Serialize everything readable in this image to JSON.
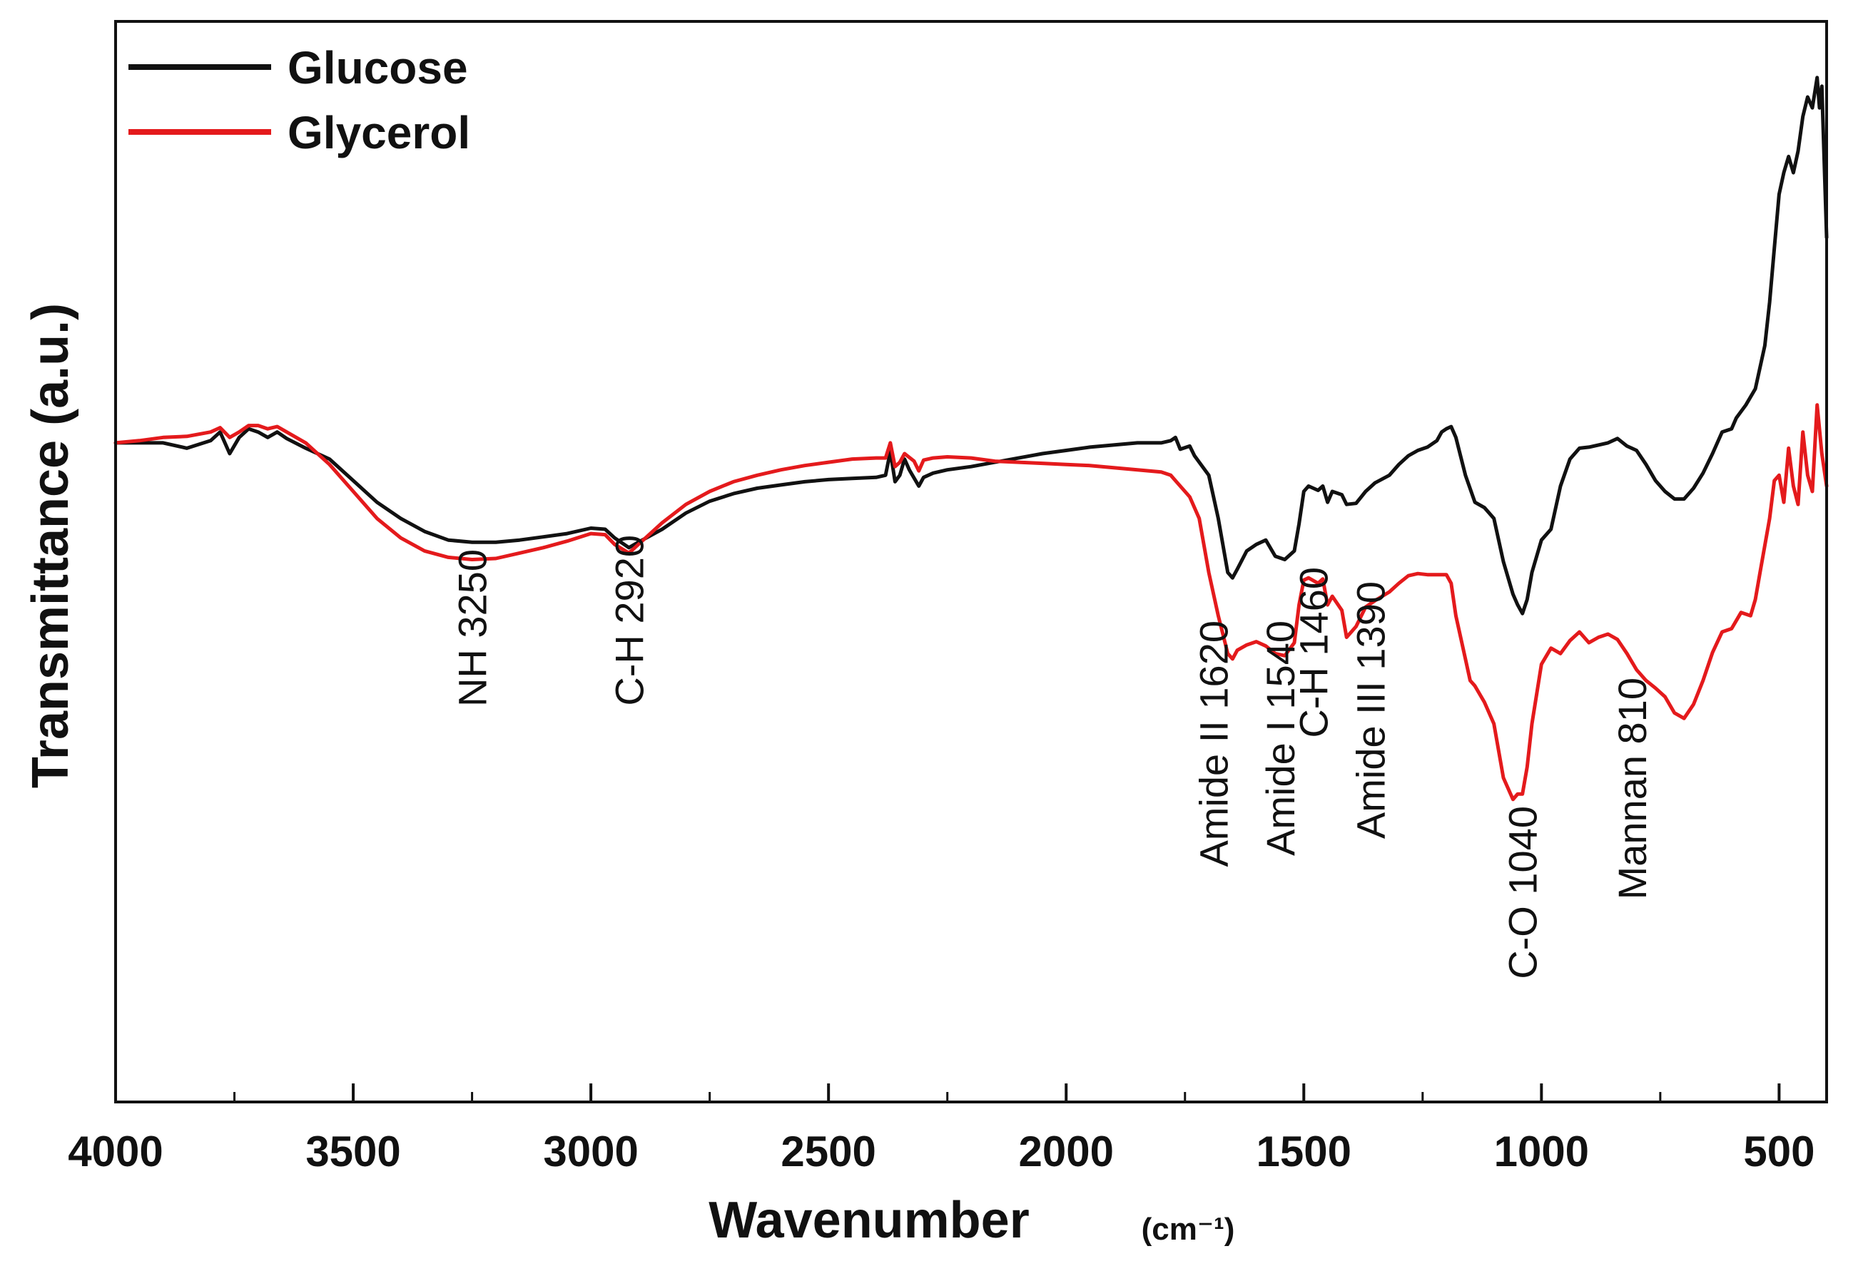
{
  "chart_data": {
    "type": "line",
    "title": "",
    "xlabel": "Wavenumber",
    "xunit": "(cm⁻¹)",
    "ylabel": "Transmittance (a.u.)",
    "xlim": [
      4000,
      400
    ],
    "ylim": [
      0,
      100
    ],
    "xticks": [
      4000,
      3500,
      3000,
      2500,
      2000,
      1500,
      1000,
      500
    ],
    "xtick_labels": [
      "4000",
      "3500",
      "3000",
      "2500",
      "2000",
      "1500",
      "1000",
      "500"
    ],
    "yticks_visible": false,
    "grid": false,
    "legend_position": "top-left",
    "series": [
      {
        "name": "Glucose",
        "color": "#111111",
        "points": [
          [
            4000,
            61
          ],
          [
            3950,
            61
          ],
          [
            3900,
            61
          ],
          [
            3850,
            60.5
          ],
          [
            3800,
            61.2
          ],
          [
            3780,
            62
          ],
          [
            3760,
            60
          ],
          [
            3740,
            61.5
          ],
          [
            3720,
            62.3
          ],
          [
            3700,
            62
          ],
          [
            3680,
            61.5
          ],
          [
            3660,
            62
          ],
          [
            3640,
            61.4
          ],
          [
            3600,
            60.5
          ],
          [
            3550,
            59.5
          ],
          [
            3500,
            57.5
          ],
          [
            3450,
            55.5
          ],
          [
            3400,
            54
          ],
          [
            3350,
            52.8
          ],
          [
            3300,
            52
          ],
          [
            3250,
            51.8
          ],
          [
            3200,
            51.8
          ],
          [
            3150,
            52
          ],
          [
            3100,
            52.3
          ],
          [
            3050,
            52.6
          ],
          [
            3000,
            53.1
          ],
          [
            2970,
            53
          ],
          [
            2950,
            52.2
          ],
          [
            2920,
            51.3
          ],
          [
            2900,
            51.8
          ],
          [
            2850,
            53
          ],
          [
            2800,
            54.5
          ],
          [
            2750,
            55.6
          ],
          [
            2700,
            56.3
          ],
          [
            2650,
            56.8
          ],
          [
            2600,
            57.1
          ],
          [
            2550,
            57.4
          ],
          [
            2500,
            57.6
          ],
          [
            2450,
            57.7
          ],
          [
            2400,
            57.8
          ],
          [
            2380,
            58
          ],
          [
            2370,
            60.2
          ],
          [
            2360,
            57.4
          ],
          [
            2350,
            58
          ],
          [
            2340,
            59.5
          ],
          [
            2330,
            58.5
          ],
          [
            2310,
            57
          ],
          [
            2300,
            57.8
          ],
          [
            2280,
            58.2
          ],
          [
            2250,
            58.5
          ],
          [
            2200,
            58.8
          ],
          [
            2150,
            59.2
          ],
          [
            2100,
            59.6
          ],
          [
            2050,
            60
          ],
          [
            2000,
            60.3
          ],
          [
            1950,
            60.6
          ],
          [
            1900,
            60.8
          ],
          [
            1850,
            61
          ],
          [
            1800,
            61
          ],
          [
            1780,
            61.2
          ],
          [
            1770,
            61.5
          ],
          [
            1760,
            60.4
          ],
          [
            1740,
            60.7
          ],
          [
            1730,
            59.8
          ],
          [
            1700,
            58
          ],
          [
            1680,
            54
          ],
          [
            1660,
            49
          ],
          [
            1650,
            48.5
          ],
          [
            1640,
            49.3
          ],
          [
            1620,
            51
          ],
          [
            1600,
            51.6
          ],
          [
            1580,
            52
          ],
          [
            1560,
            50.5
          ],
          [
            1540,
            50.2
          ],
          [
            1520,
            51
          ],
          [
            1510,
            53.5
          ],
          [
            1500,
            56.5
          ],
          [
            1490,
            57
          ],
          [
            1470,
            56.6
          ],
          [
            1460,
            57
          ],
          [
            1450,
            55.5
          ],
          [
            1440,
            56.5
          ],
          [
            1420,
            56.2
          ],
          [
            1410,
            55.3
          ],
          [
            1390,
            55.4
          ],
          [
            1370,
            56.5
          ],
          [
            1350,
            57.3
          ],
          [
            1320,
            58
          ],
          [
            1300,
            59
          ],
          [
            1280,
            59.8
          ],
          [
            1260,
            60.3
          ],
          [
            1240,
            60.6
          ],
          [
            1220,
            61.2
          ],
          [
            1210,
            62
          ],
          [
            1200,
            62.3
          ],
          [
            1190,
            62.5
          ],
          [
            1180,
            61.5
          ],
          [
            1160,
            58
          ],
          [
            1140,
            55.5
          ],
          [
            1120,
            55
          ],
          [
            1100,
            54
          ],
          [
            1080,
            50
          ],
          [
            1060,
            47
          ],
          [
            1050,
            46
          ],
          [
            1040,
            45.2
          ],
          [
            1030,
            46.5
          ],
          [
            1020,
            49
          ],
          [
            1000,
            52
          ],
          [
            980,
            53
          ],
          [
            960,
            57
          ],
          [
            940,
            59.5
          ],
          [
            920,
            60.5
          ],
          [
            900,
            60.6
          ],
          [
            880,
            60.8
          ],
          [
            860,
            61
          ],
          [
            840,
            61.4
          ],
          [
            820,
            60.7
          ],
          [
            800,
            60.3
          ],
          [
            780,
            59
          ],
          [
            760,
            57.5
          ],
          [
            740,
            56.5
          ],
          [
            720,
            55.8
          ],
          [
            700,
            55.8
          ],
          [
            680,
            56.8
          ],
          [
            660,
            58.2
          ],
          [
            640,
            60
          ],
          [
            620,
            62
          ],
          [
            600,
            62.3
          ],
          [
            590,
            63.3
          ],
          [
            570,
            64.5
          ],
          [
            550,
            66
          ],
          [
            530,
            70
          ],
          [
            520,
            74
          ],
          [
            510,
            79
          ],
          [
            500,
            84
          ],
          [
            490,
            86
          ],
          [
            480,
            87.5
          ],
          [
            470,
            86
          ],
          [
            460,
            88
          ],
          [
            450,
            91.2
          ],
          [
            440,
            93
          ],
          [
            430,
            92
          ],
          [
            420,
            94.8
          ],
          [
            415,
            92
          ],
          [
            410,
            94
          ],
          [
            400,
            80
          ]
        ]
      },
      {
        "name": "Glycerol",
        "color": "#e41a1c",
        "points": [
          [
            4000,
            61
          ],
          [
            3950,
            61.2
          ],
          [
            3900,
            61.5
          ],
          [
            3850,
            61.6
          ],
          [
            3800,
            62
          ],
          [
            3780,
            62.4
          ],
          [
            3760,
            61.5
          ],
          [
            3740,
            62
          ],
          [
            3720,
            62.6
          ],
          [
            3700,
            62.6
          ],
          [
            3680,
            62.3
          ],
          [
            3660,
            62.5
          ],
          [
            3640,
            62
          ],
          [
            3600,
            61
          ],
          [
            3550,
            59
          ],
          [
            3500,
            56.5
          ],
          [
            3450,
            54
          ],
          [
            3400,
            52.2
          ],
          [
            3350,
            51
          ],
          [
            3300,
            50.4
          ],
          [
            3250,
            50.2
          ],
          [
            3200,
            50.3
          ],
          [
            3150,
            50.8
          ],
          [
            3100,
            51.3
          ],
          [
            3050,
            51.9
          ],
          [
            3000,
            52.6
          ],
          [
            2970,
            52.5
          ],
          [
            2950,
            51.6
          ],
          [
            2920,
            50.8
          ],
          [
            2900,
            51.6
          ],
          [
            2850,
            53.6
          ],
          [
            2800,
            55.3
          ],
          [
            2750,
            56.5
          ],
          [
            2700,
            57.4
          ],
          [
            2650,
            58
          ],
          [
            2600,
            58.5
          ],
          [
            2550,
            58.9
          ],
          [
            2500,
            59.2
          ],
          [
            2450,
            59.5
          ],
          [
            2400,
            59.6
          ],
          [
            2380,
            59.6
          ],
          [
            2370,
            61
          ],
          [
            2360,
            58.8
          ],
          [
            2350,
            59.2
          ],
          [
            2340,
            60
          ],
          [
            2320,
            59.3
          ],
          [
            2310,
            58.4
          ],
          [
            2300,
            59.4
          ],
          [
            2280,
            59.6
          ],
          [
            2250,
            59.7
          ],
          [
            2200,
            59.6
          ],
          [
            2150,
            59.3
          ],
          [
            2100,
            59.2
          ],
          [
            2050,
            59.1
          ],
          [
            2000,
            59
          ],
          [
            1950,
            58.9
          ],
          [
            1900,
            58.7
          ],
          [
            1850,
            58.5
          ],
          [
            1800,
            58.3
          ],
          [
            1780,
            58
          ],
          [
            1770,
            57.5
          ],
          [
            1760,
            57
          ],
          [
            1740,
            56
          ],
          [
            1720,
            54
          ],
          [
            1700,
            49
          ],
          [
            1680,
            45
          ],
          [
            1660,
            41.5
          ],
          [
            1650,
            41
          ],
          [
            1640,
            41.8
          ],
          [
            1620,
            42.3
          ],
          [
            1600,
            42.6
          ],
          [
            1580,
            42.2
          ],
          [
            1560,
            41.5
          ],
          [
            1540,
            41.3
          ],
          [
            1520,
            42.5
          ],
          [
            1510,
            46
          ],
          [
            1500,
            48.3
          ],
          [
            1490,
            48.5
          ],
          [
            1470,
            48
          ],
          [
            1460,
            48.4
          ],
          [
            1450,
            46
          ],
          [
            1440,
            46.8
          ],
          [
            1420,
            45.5
          ],
          [
            1410,
            43
          ],
          [
            1390,
            44
          ],
          [
            1370,
            45.8
          ],
          [
            1350,
            46.4
          ],
          [
            1320,
            47.2
          ],
          [
            1300,
            48
          ],
          [
            1280,
            48.7
          ],
          [
            1260,
            48.9
          ],
          [
            1240,
            48.8
          ],
          [
            1220,
            48.8
          ],
          [
            1200,
            48.8
          ],
          [
            1190,
            48
          ],
          [
            1180,
            45
          ],
          [
            1160,
            41
          ],
          [
            1150,
            39
          ],
          [
            1140,
            38.5
          ],
          [
            1120,
            37
          ],
          [
            1100,
            35
          ],
          [
            1080,
            30
          ],
          [
            1060,
            28
          ],
          [
            1050,
            28.5
          ],
          [
            1040,
            28.5
          ],
          [
            1030,
            31
          ],
          [
            1020,
            35
          ],
          [
            1000,
            40.5
          ],
          [
            980,
            42
          ],
          [
            960,
            41.5
          ],
          [
            940,
            42.7
          ],
          [
            920,
            43.5
          ],
          [
            900,
            42.5
          ],
          [
            880,
            43
          ],
          [
            860,
            43.3
          ],
          [
            840,
            42.8
          ],
          [
            820,
            41.5
          ],
          [
            800,
            40
          ],
          [
            780,
            39
          ],
          [
            760,
            38.3
          ],
          [
            740,
            37.5
          ],
          [
            720,
            36
          ],
          [
            700,
            35.5
          ],
          [
            680,
            36.8
          ],
          [
            660,
            39
          ],
          [
            640,
            41.6
          ],
          [
            620,
            43.5
          ],
          [
            600,
            43.8
          ],
          [
            580,
            45.3
          ],
          [
            560,
            45
          ],
          [
            550,
            46.5
          ],
          [
            540,
            49
          ],
          [
            520,
            54
          ],
          [
            510,
            57.5
          ],
          [
            500,
            58
          ],
          [
            490,
            55.5
          ],
          [
            480,
            60.5
          ],
          [
            470,
            57
          ],
          [
            460,
            55.3
          ],
          [
            450,
            62
          ],
          [
            440,
            58
          ],
          [
            430,
            56.5
          ],
          [
            420,
            64.5
          ],
          [
            410,
            60
          ],
          [
            400,
            57
          ]
        ]
      }
    ],
    "annotations": [
      {
        "label": "NH  3250",
        "x": 3250
      },
      {
        "label": "C-H  2920",
        "x": 2920
      },
      {
        "label": "Amide II  1620",
        "x": 1690
      },
      {
        "label": "Amide I 1540",
        "x": 1550
      },
      {
        "label": "C-H 1460",
        "x": 1480
      },
      {
        "label": "Amide III 1390",
        "x": 1360
      },
      {
        "label": "C-O 1040",
        "x": 1040
      },
      {
        "label": "Mannan 810",
        "x": 810
      }
    ]
  }
}
